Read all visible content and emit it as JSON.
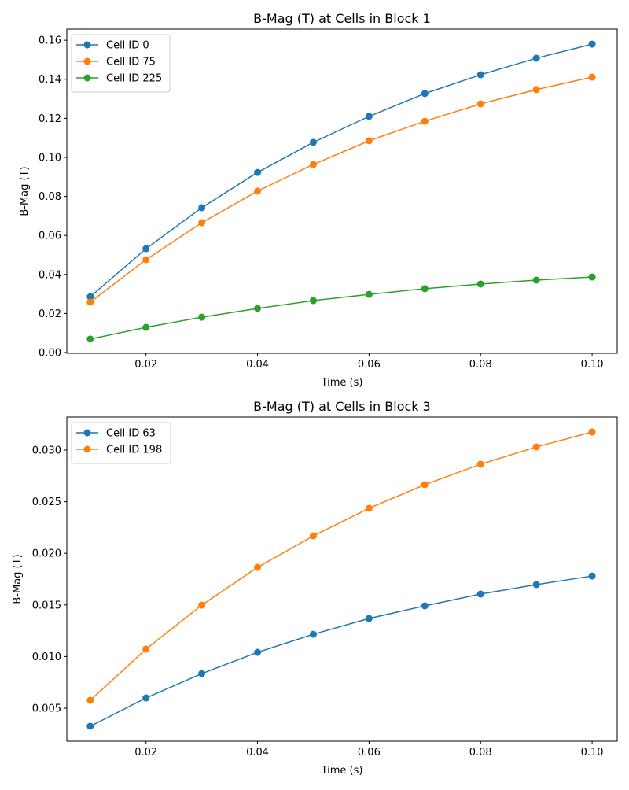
{
  "chart_data": [
    {
      "type": "line",
      "title": "B-Mag (T) at Cells in Block 1",
      "xlabel": "Time (s)",
      "ylabel": "B-Mag (T)",
      "x": [
        0.01,
        0.02,
        0.03,
        0.04,
        0.05,
        0.06,
        0.07,
        0.08,
        0.09,
        0.1
      ],
      "xlim": [
        0.0058,
        0.1045
      ],
      "ylim": [
        -0.0004,
        0.1657
      ],
      "xticks": [
        0.02,
        0.04,
        0.06,
        0.08,
        0.1
      ],
      "xtick_labels": [
        "0.02",
        "0.04",
        "0.06",
        "0.08",
        "0.10"
      ],
      "yticks": [
        0,
        0.02,
        0.04,
        0.06,
        0.08,
        0.1,
        0.12,
        0.14,
        0.16
      ],
      "ytick_labels": [
        "0.00",
        "0.02",
        "0.04",
        "0.06",
        "0.08",
        "0.10",
        "0.12",
        "0.14",
        "0.16"
      ],
      "legend": "top-left",
      "grid": false,
      "series": [
        {
          "name": "Cell ID 0",
          "color": "#1f77b4",
          "values": [
            0.0286,
            0.0532,
            0.0742,
            0.0923,
            0.1077,
            0.121,
            0.1327,
            0.1423,
            0.1508,
            0.158
          ]
        },
        {
          "name": "Cell ID 75",
          "color": "#ff7f0e",
          "values": [
            0.0258,
            0.0476,
            0.0665,
            0.0827,
            0.0964,
            0.1085,
            0.1185,
            0.1274,
            0.1347,
            0.1411
          ]
        },
        {
          "name": "Cell ID 225",
          "color": "#2ca02c",
          "values": [
            0.0069,
            0.0129,
            0.0181,
            0.0226,
            0.0266,
            0.0298,
            0.0327,
            0.0351,
            0.0371,
            0.0387
          ]
        }
      ]
    },
    {
      "type": "line",
      "title": "B-Mag (T) at Cells in Block 3",
      "xlabel": "Time (s)",
      "ylabel": "B-Mag (T)",
      "x": [
        0.01,
        0.02,
        0.03,
        0.04,
        0.05,
        0.06,
        0.07,
        0.08,
        0.09,
        0.1
      ],
      "xlim": [
        0.0058,
        0.1045
      ],
      "ylim": [
        0.0018,
        0.0332
      ],
      "xticks": [
        0.02,
        0.04,
        0.06,
        0.08,
        0.1
      ],
      "xtick_labels": [
        "0.02",
        "0.04",
        "0.06",
        "0.08",
        "0.10"
      ],
      "yticks": [
        0.005,
        0.01,
        0.015,
        0.02,
        0.025,
        0.03
      ],
      "ytick_labels": [
        "0.005",
        "0.010",
        "0.015",
        "0.020",
        "0.025",
        "0.030"
      ],
      "legend": "top-left",
      "grid": false,
      "series": [
        {
          "name": "Cell ID 63",
          "color": "#1f77b4",
          "values": [
            0.00325,
            0.00599,
            0.00835,
            0.01041,
            0.01216,
            0.01369,
            0.01491,
            0.01605,
            0.01697,
            0.0178
          ]
        },
        {
          "name": "Cell ID 198",
          "color": "#ff7f0e",
          "values": [
            0.00576,
            0.01072,
            0.01498,
            0.01864,
            0.02169,
            0.02436,
            0.02665,
            0.02863,
            0.0303,
            0.03175
          ]
        }
      ]
    }
  ]
}
